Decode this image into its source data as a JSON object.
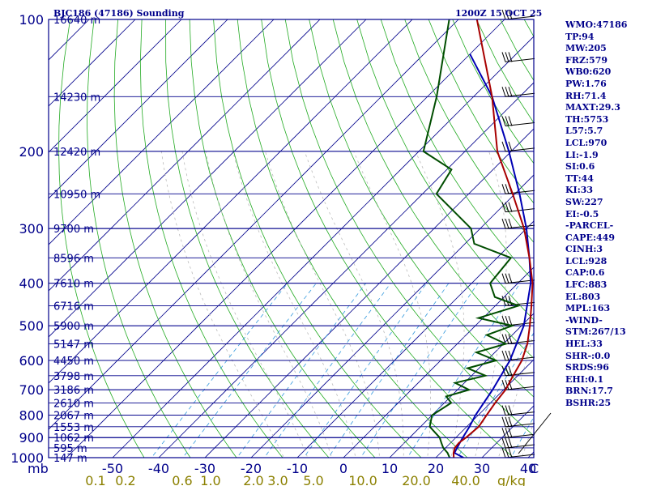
{
  "header": {
    "station": "BJC186 (47186) Sounding",
    "time": "1200Z 15 OCT 25"
  },
  "chart_data": {
    "type": "skew-t",
    "title": "BJC186 (47186) Sounding",
    "pressure_levels": [
      100,
      200,
      300,
      400,
      500,
      600,
      700,
      800,
      900,
      1000
    ],
    "height_labels": [
      {
        "p": 100,
        "label": "16640 m"
      },
      {
        "p": 150,
        "label": "14230 m"
      },
      {
        "p": 200,
        "label": "12420 m"
      },
      {
        "p": 250,
        "label": "10950 m"
      },
      {
        "p": 300,
        "label": "9700 m"
      },
      {
        "p": 350,
        "label": "8596 m"
      },
      {
        "p": 400,
        "label": "7610 m"
      },
      {
        "p": 450,
        "label": "6716 m"
      },
      {
        "p": 500,
        "label": "5900 m"
      },
      {
        "p": 550,
        "label": "5147 m"
      },
      {
        "p": 600,
        "label": "4450 m"
      },
      {
        "p": 650,
        "label": "3798 m"
      },
      {
        "p": 700,
        "label": "3186 m"
      },
      {
        "p": 750,
        "label": "2610 m"
      },
      {
        "p": 800,
        "label": "2067 m"
      },
      {
        "p": 850,
        "label": "1553 m"
      },
      {
        "p": 900,
        "label": "1062 m"
      },
      {
        "p": 950,
        "label": "595 m"
      },
      {
        "p": 1000,
        "label": "147 m"
      }
    ],
    "temp_ticks": [
      -50,
      -40,
      -30,
      -20,
      -10,
      0,
      10,
      20,
      30,
      40
    ],
    "temp_tick_labels": [
      "-50",
      "-40",
      "-30",
      "-20",
      "-10",
      "0",
      "10",
      "20",
      "30",
      "40"
    ],
    "mixing_ratio_labels": [
      "0.1",
      "0.2",
      "0.6",
      "1.0",
      "2.0",
      "3.0",
      "5.0",
      "10.0",
      "20.0",
      "40.0"
    ],
    "pressure_unit": "mb",
    "mixing_unit": "g/kg",
    "corner_label": "C",
    "temperature": [
      [
        1000,
        23.9
      ],
      [
        975,
        22.8
      ],
      [
        950,
        22.0
      ],
      [
        925,
        21.8
      ],
      [
        900,
        22.2
      ],
      [
        850,
        22.6
      ],
      [
        800,
        21.8
      ],
      [
        750,
        21.0
      ],
      [
        700,
        20.4
      ],
      [
        650,
        19.0
      ],
      [
        600,
        17.6
      ],
      [
        550,
        15.2
      ],
      [
        500,
        11.8
      ],
      [
        450,
        7.8
      ],
      [
        400,
        3.2
      ],
      [
        350,
        -3.0
      ],
      [
        300,
        -10.5
      ],
      [
        250,
        -20.5
      ],
      [
        200,
        -33.0
      ],
      [
        150,
        -46.0
      ],
      [
        100,
        -66.0
      ]
    ],
    "dewpoint": [
      [
        1000,
        23.0
      ],
      [
        975,
        21.5
      ],
      [
        950,
        19.5
      ],
      [
        925,
        18.0
      ],
      [
        900,
        16.5
      ],
      [
        850,
        12.0
      ],
      [
        800,
        10.0
      ],
      [
        750,
        11.5
      ],
      [
        725,
        9.0
      ],
      [
        700,
        12.5
      ],
      [
        675,
        8.0
      ],
      [
        650,
        13.0
      ],
      [
        625,
        7.5
      ],
      [
        600,
        12.0
      ],
      [
        575,
        6.0
      ],
      [
        550,
        10.5
      ],
      [
        525,
        4.5
      ],
      [
        500,
        8.0
      ],
      [
        480,
        -1.0
      ],
      [
        460,
        3.0
      ],
      [
        450,
        5.0
      ],
      [
        430,
        -2.0
      ],
      [
        400,
        -6.0
      ],
      [
        350,
        -7.0
      ],
      [
        325,
        -18.0
      ],
      [
        300,
        -22.0
      ],
      [
        250,
        -37.0
      ],
      [
        220,
        -39.0
      ],
      [
        200,
        -49.0
      ],
      [
        150,
        -58.0
      ],
      [
        100,
        -72.0
      ]
    ],
    "parcel": [
      [
        1000,
        26.0
      ],
      [
        975,
        23.0
      ],
      [
        950,
        22.5
      ],
      [
        900,
        21.5
      ],
      [
        850,
        20.6
      ],
      [
        800,
        19.4
      ],
      [
        700,
        17.6
      ],
      [
        600,
        15.0
      ],
      [
        500,
        10.5
      ],
      [
        400,
        2.8
      ],
      [
        350,
        -3.0
      ],
      [
        300,
        -10.0
      ],
      [
        250,
        -19.0
      ],
      [
        200,
        -30.5
      ],
      [
        150,
        -46.0
      ],
      [
        120,
        -60.0
      ]
    ]
  },
  "panel": {
    "items": [
      "WMO:47186",
      "TP:94",
      "MW:205",
      "FRZ:579",
      "WB0:620",
      "PW:1.76",
      "RH:71.4",
      "MAXT:29.3",
      "TH:5753",
      "L57:5.7",
      "LCL:970",
      "LI:-1.9",
      "SI:0.6",
      "TT:44",
      "KI:33",
      "SW:227",
      "EI:-0.5",
      "-PARCEL-",
      "CAPE:449",
      "CINH:3",
      "LCL:928",
      "CAP:0.6",
      "LFC:883",
      "EL:803",
      "MPL:163",
      "-WIND-",
      "STM:267/13",
      "HEL:33",
      "SHR-:0.0",
      "SRDS:96",
      "EHI:0.1",
      "BRN:17.7",
      "BSHR:25"
    ]
  }
}
